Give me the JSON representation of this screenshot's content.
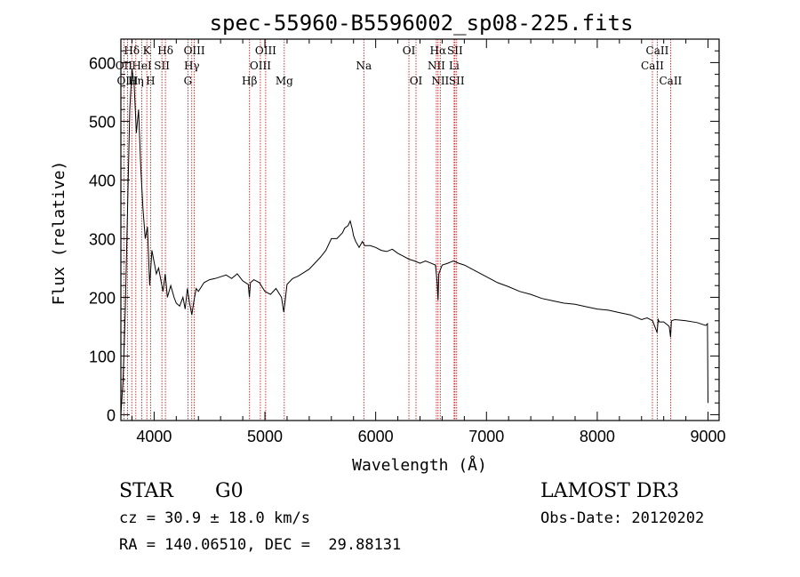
{
  "chart_data": {
    "type": "line",
    "title": "spec-55960-B5596002_sp08-225.fits",
    "xlabel": "Wavelength (Å)",
    "ylabel": "Flux (relative)",
    "xlim": [
      3700,
      9100
    ],
    "ylim": [
      -10,
      640
    ],
    "x_ticks": [
      4000,
      5000,
      6000,
      7000,
      8000,
      9000
    ],
    "y_ticks": [
      0,
      100,
      200,
      300,
      400,
      500,
      600
    ],
    "series": [
      {
        "name": "flux",
        "x": [
          3700,
          3720,
          3740,
          3760,
          3780,
          3800,
          3820,
          3840,
          3860,
          3880,
          3900,
          3920,
          3940,
          3960,
          3980,
          4000,
          4020,
          4040,
          4060,
          4080,
          4100,
          4120,
          4150,
          4180,
          4200,
          4230,
          4260,
          4280,
          4300,
          4320,
          4340,
          4360,
          4380,
          4400,
          4450,
          4500,
          4550,
          4600,
          4650,
          4700,
          4750,
          4800,
          4850,
          4860,
          4870,
          4900,
          4950,
          5000,
          5050,
          5100,
          5150,
          5170,
          5180,
          5200,
          5250,
          5300,
          5350,
          5400,
          5450,
          5500,
          5550,
          5600,
          5650,
          5700,
          5720,
          5750,
          5770,
          5790,
          5800,
          5820,
          5850,
          5880,
          5900,
          5950,
          6000,
          6050,
          6100,
          6150,
          6200,
          6250,
          6300,
          6350,
          6400,
          6450,
          6500,
          6540,
          6555,
          6563,
          6570,
          6600,
          6650,
          6700,
          6750,
          6800,
          6900,
          7000,
          7100,
          7200,
          7300,
          7400,
          7500,
          7600,
          7700,
          7800,
          7900,
          8000,
          8100,
          8200,
          8300,
          8400,
          8450,
          8500,
          8520,
          8540,
          8550,
          8560,
          8600,
          8640,
          8650,
          8662,
          8670,
          8700,
          8800,
          8900,
          8980,
          8995,
          9000
        ],
        "values": [
          0,
          60,
          180,
          350,
          520,
          590,
          560,
          480,
          520,
          420,
          350,
          300,
          320,
          220,
          280,
          260,
          240,
          250,
          230,
          210,
          240,
          200,
          220,
          200,
          190,
          185,
          200,
          180,
          215,
          190,
          170,
          195,
          215,
          210,
          225,
          230,
          232,
          235,
          238,
          232,
          240,
          228,
          222,
          200,
          225,
          230,
          225,
          210,
          205,
          215,
          200,
          175,
          190,
          222,
          232,
          236,
          242,
          248,
          258,
          268,
          280,
          300,
          300,
          310,
          318,
          322,
          330,
          315,
          305,
          295,
          285,
          295,
          288,
          288,
          285,
          280,
          278,
          282,
          275,
          270,
          265,
          262,
          258,
          262,
          258,
          255,
          225,
          195,
          240,
          255,
          258,
          262,
          258,
          255,
          245,
          235,
          225,
          218,
          210,
          205,
          198,
          194,
          190,
          188,
          184,
          180,
          178,
          174,
          170,
          162,
          165,
          160,
          150,
          140,
          162,
          158,
          158,
          152,
          150,
          132,
          160,
          162,
          160,
          157,
          152,
          155,
          20
        ]
      }
    ],
    "emission_lines": [
      {
        "label": "Hδ",
        "wave": 3798,
        "row": 1
      },
      {
        "label": "K",
        "wave": 3934,
        "row": 1
      },
      {
        "label": "Hδ",
        "wave": 4102,
        "row": 1
      },
      {
        "label": "OIII",
        "wave": 4363,
        "row": 1
      },
      {
        "label": "OIII",
        "wave": 5007,
        "row": 1
      },
      {
        "label": "OI",
        "wave": 6300,
        "row": 1
      },
      {
        "label": "Hα",
        "wave": 6563,
        "row": 1
      },
      {
        "label": "SII",
        "wave": 6716,
        "row": 1
      },
      {
        "label": "CaII",
        "wave": 8542,
        "row": 1
      },
      {
        "label": "OII",
        "wave": 3727,
        "row": 2
      },
      {
        "label": "HeI",
        "wave": 3889,
        "row": 2
      },
      {
        "label": "SII",
        "wave": 4070,
        "row": 2
      },
      {
        "label": "Hγ",
        "wave": 4340,
        "row": 2
      },
      {
        "label": "OIII",
        "wave": 4959,
        "row": 2
      },
      {
        "label": "Na",
        "wave": 5893,
        "row": 2
      },
      {
        "label": "NII",
        "wave": 6548,
        "row": 2
      },
      {
        "label": "Li",
        "wave": 6708,
        "row": 2
      },
      {
        "label": "CaII",
        "wave": 8498,
        "row": 2
      },
      {
        "label": "OIII",
        "wave": 3760,
        "row": 3
      },
      {
        "label": "Hη",
        "wave": 3835,
        "row": 3
      },
      {
        "label": "H",
        "wave": 3968,
        "row": 3
      },
      {
        "label": "G",
        "wave": 4305,
        "row": 3
      },
      {
        "label": "Hβ",
        "wave": 4861,
        "row": 3
      },
      {
        "label": "Mg",
        "wave": 5175,
        "row": 3
      },
      {
        "label": "OI",
        "wave": 6364,
        "row": 3
      },
      {
        "label": "NII",
        "wave": 6583,
        "row": 3
      },
      {
        "label": "SII",
        "wave": 6731,
        "row": 3
      },
      {
        "label": "CaII",
        "wave": 8662,
        "row": 3
      }
    ],
    "line_color": "#cc0000"
  },
  "info": {
    "object_class": "STAR",
    "subclass": "G0",
    "survey": "LAMOST DR3",
    "redshift": "cz = 30.9 ± 18.0 km/s",
    "obs_date": "Obs-Date: 20120202",
    "coords": "RA = 140.06510, DEC =  29.88131"
  }
}
